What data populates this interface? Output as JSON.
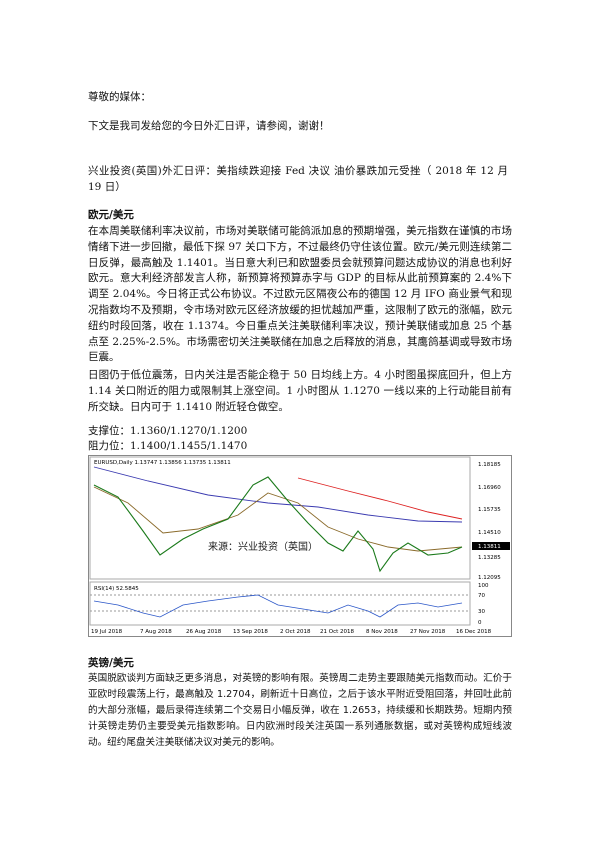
{
  "greeting": "尊敬的媒体：",
  "intro": "下文是我司发给您的今日外汇日评，请参阅，谢谢！",
  "title": "兴业投资(英国)外汇日评：美指续跌迎接 Fed 决议 油价暴跌加元受挫（ 2018 年 12 月 19 日）",
  "sections": [
    {
      "heading": "欧元/美元",
      "paragraphs": [
        "在本周美联储利率决议前，市场对美联储可能鸽派加息的预期增强，美元指数在谨慎的市场情绪下进一步回撤，最低下探 97 关口下方，不过最终仍守住该位置。欧元/美元则连续第二日反弹，最高触及 1.1401。当日意大利已和欧盟委员会就预算问题达成协议的消息也利好欧元。意大利经济部发言人称，新预算将预算赤字与 GDP 的目标从此前预算案的 2.4%下调至 2.04%。今日将正式公布协议。不过欧元区隔夜公布的德国 12 月 IFO 商业景气和现况指数均不及预期，令市场对欧元区经济放缓的担忧越加严重，这限制了欧元的涨幅，欧元纽约时段回落，收在 1.1374。今日重点关注美联储利率决议，预计美联储或加息 25 个基点至 2.25%-2.5%。市场需密切关注美联储在加息之后释放的消息，其鹰鸽基调或导致市场巨震。",
        "日图仍于低位震荡，日内关注是否能企稳于 50 日均线上方。4 小时图虽探底回升，但上方 1.14 关口附近的阻力或限制其上涨空间。1 小时图从 1.1270 一线以来的上行动能目前有所交缺。日内可于 1.1410 附近轻仓做空。"
      ],
      "support": "支撑位：1.1360/1.1270/1.1200",
      "resistance": "阻力位：1.1400/1.1455/1.1470"
    },
    {
      "heading": "英镑/美元",
      "paragraphs": [
        "英国脱欧谈判方面缺乏更多消息，对英镑的影响有限。英镑周二走势主要跟随美元指数而动。汇价于亚欧时段震荡上行，最高触及 1.2704，刷新近十日高位，之后于该水平附近受阻回落，并回吐此前的大部分涨幅，最后录得连续第二个交易日小幅反弹，收在 1.2653，持续缓和长期跌势。短期内预计英镑走势仍主要受美元指数影响。日内欧洲时段关注英国一系列通胀数据，或对英镑构成短线波动。纽约尾盘关注美联储决议对美元的影响。"
      ]
    }
  ],
  "figure": {
    "header": "EURUSD,Daily 1.13747 1.13856 1.13735 1.13811",
    "watermark": "来源：兴业投资（英国）",
    "price_labels": [
      "1.18185",
      "1.16960",
      "1.15735",
      "1.14510",
      "1.13811",
      "1.13285",
      "1.12095"
    ],
    "rsi_header": "RSI(14) 52.5845",
    "rsi_labels": [
      "100",
      "70",
      "30",
      "0"
    ],
    "date_labels": [
      "19 Jul 2018",
      "7 Aug 2018",
      "26 Aug 2018",
      "13 Sep 2018",
      "2 Oct 2018",
      "21 Oct 2018",
      "8 Nov 2018",
      "27 Nov 2018",
      "16 Dec 2018"
    ]
  }
}
